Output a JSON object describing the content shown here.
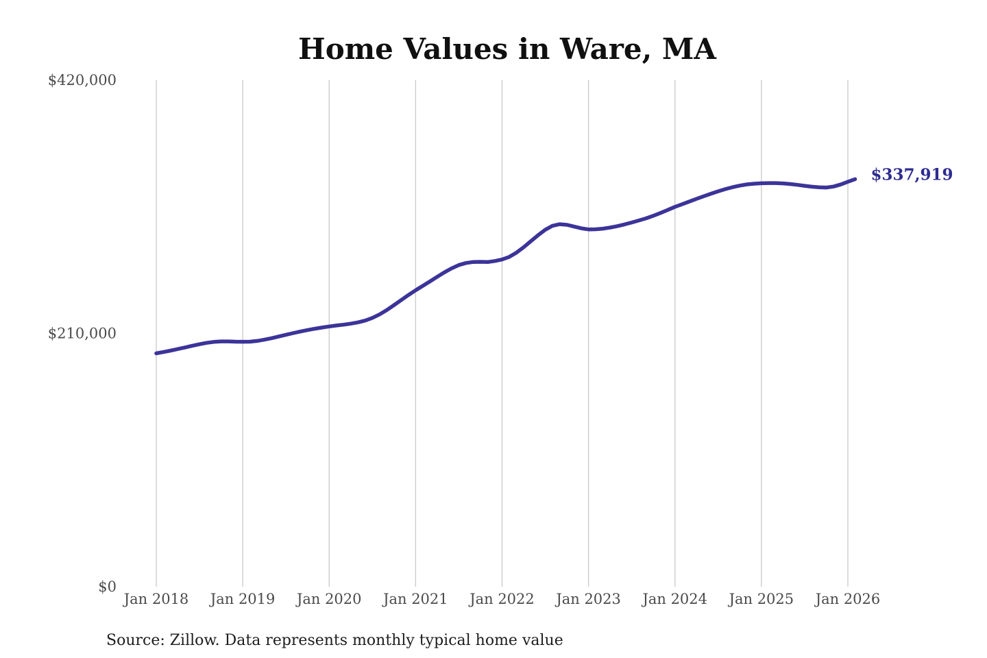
{
  "chart": {
    "title": "Home Values in Ware, MA",
    "source_note": "Source: Zillow. Data represents monthly typical home value",
    "end_label": "$337,919",
    "colors": {
      "line": "#3c3499",
      "end_label": "#2e2b91",
      "gridline": "#cccccc",
      "axis_text": "#4a4a4a",
      "title_text": "#101010",
      "source_text": "#1d1d1d",
      "background": "#ffffff"
    }
  },
  "chart_data": {
    "type": "line",
    "title": "Home Values in Ware, MA",
    "xlabel": "",
    "ylabel": "",
    "ylim": [
      0,
      420000
    ],
    "y_ticks": [
      0,
      210000,
      420000
    ],
    "y_tick_labels": [
      "$0",
      "$210,000",
      "$420,000"
    ],
    "x_tick_labels": [
      "Jan 2018",
      "Jan 2019",
      "Jan 2020",
      "Jan 2021",
      "Jan 2022",
      "Jan 2023",
      "Jan 2024",
      "Jan 2025",
      "Jan 2026"
    ],
    "grid": "vertical-only",
    "legend": "none",
    "series": [
      {
        "name": "Monthly typical home value",
        "final_value": 337919,
        "final_value_label": "$337,919",
        "months": [
          "2018-01",
          "2018-02",
          "2018-03",
          "2018-04",
          "2018-05",
          "2018-06",
          "2018-07",
          "2018-08",
          "2018-09",
          "2018-10",
          "2018-11",
          "2018-12",
          "2019-01",
          "2019-02",
          "2019-03",
          "2019-04",
          "2019-05",
          "2019-06",
          "2019-07",
          "2019-08",
          "2019-09",
          "2019-10",
          "2019-11",
          "2019-12",
          "2020-01",
          "2020-02",
          "2020-03",
          "2020-04",
          "2020-05",
          "2020-06",
          "2020-07",
          "2020-08",
          "2020-09",
          "2020-10",
          "2020-11",
          "2020-12",
          "2021-01",
          "2021-02",
          "2021-03",
          "2021-04",
          "2021-05",
          "2021-06",
          "2021-07",
          "2021-08",
          "2021-09",
          "2021-10",
          "2021-11",
          "2021-12",
          "2022-01",
          "2022-02",
          "2022-03",
          "2022-04",
          "2022-05",
          "2022-06",
          "2022-07",
          "2022-08",
          "2022-09",
          "2022-10",
          "2022-11",
          "2022-12",
          "2023-01",
          "2023-02",
          "2023-03",
          "2023-04",
          "2023-05",
          "2023-06",
          "2023-07",
          "2023-08",
          "2023-09",
          "2023-10",
          "2023-11",
          "2023-12",
          "2024-01",
          "2024-02",
          "2024-03",
          "2024-04",
          "2024-05",
          "2024-06",
          "2024-07",
          "2024-08",
          "2024-09",
          "2024-10",
          "2024-11",
          "2024-12",
          "2025-01",
          "2025-02",
          "2025-03",
          "2025-04",
          "2025-05",
          "2025-06",
          "2025-07",
          "2025-08",
          "2025-09",
          "2025-10",
          "2025-11",
          "2025-12",
          "2026-01",
          "2026-02"
        ],
        "values": [
          193500,
          194600,
          195800,
          197100,
          198400,
          199800,
          201100,
          202200,
          203000,
          203400,
          203400,
          203200,
          203100,
          203200,
          203800,
          204800,
          206100,
          207500,
          208900,
          210300,
          211600,
          212800,
          213900,
          214900,
          215800,
          216600,
          217300,
          218100,
          219200,
          220700,
          222900,
          225800,
          229400,
          233500,
          237700,
          241900,
          245800,
          249500,
          253200,
          257000,
          260700,
          264000,
          266700,
          268400,
          269300,
          269400,
          269200,
          270100,
          271300,
          273500,
          277000,
          281500,
          286500,
          291500,
          296000,
          299300,
          300600,
          300100,
          298600,
          297200,
          296300,
          296400,
          296900,
          297800,
          299000,
          300400,
          302000,
          303700,
          305500,
          307600,
          309900,
          312400,
          315000,
          317200,
          319400,
          321600,
          323800,
          325900,
          327900,
          329700,
          331300,
          332600,
          333600,
          334200,
          334500,
          334700,
          334700,
          334400,
          333900,
          333200,
          332400,
          331700,
          331200,
          331000,
          331800,
          333500,
          335800,
          337919
        ]
      }
    ]
  }
}
